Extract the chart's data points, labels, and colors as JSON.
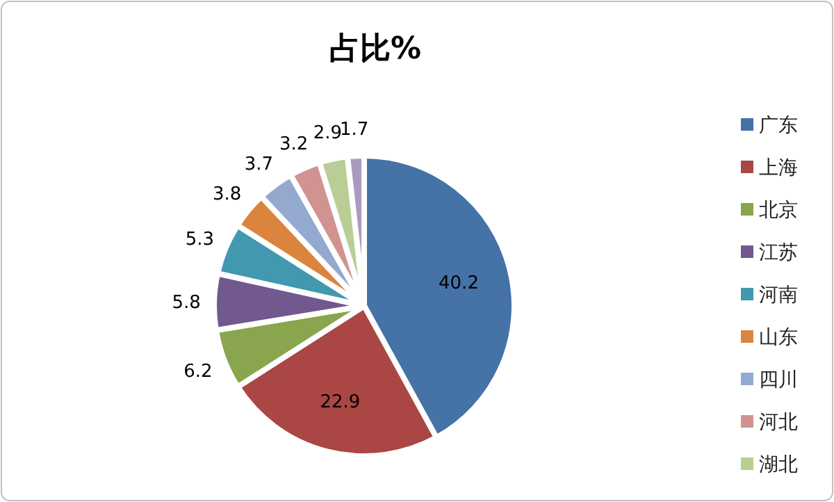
{
  "chart_data": {
    "type": "pie",
    "title": "占比%",
    "categories": [
      "广东",
      "上海",
      "北京",
      "江苏",
      "河南",
      "山东",
      "四川",
      "河北",
      "湖北",
      null
    ],
    "values": [
      40.2,
      22.9,
      6.2,
      5.8,
      5.3,
      3.8,
      3.7,
      3.2,
      2.9,
      1.7
    ],
    "colors": [
      "#4572a7",
      "#aa4643",
      "#89a54e",
      "#71588f",
      "#4198af",
      "#db843d",
      "#93a9cf",
      "#d19392",
      "#b9cd96",
      "#a99bbd"
    ],
    "data_labels": true,
    "legend": "right"
  }
}
